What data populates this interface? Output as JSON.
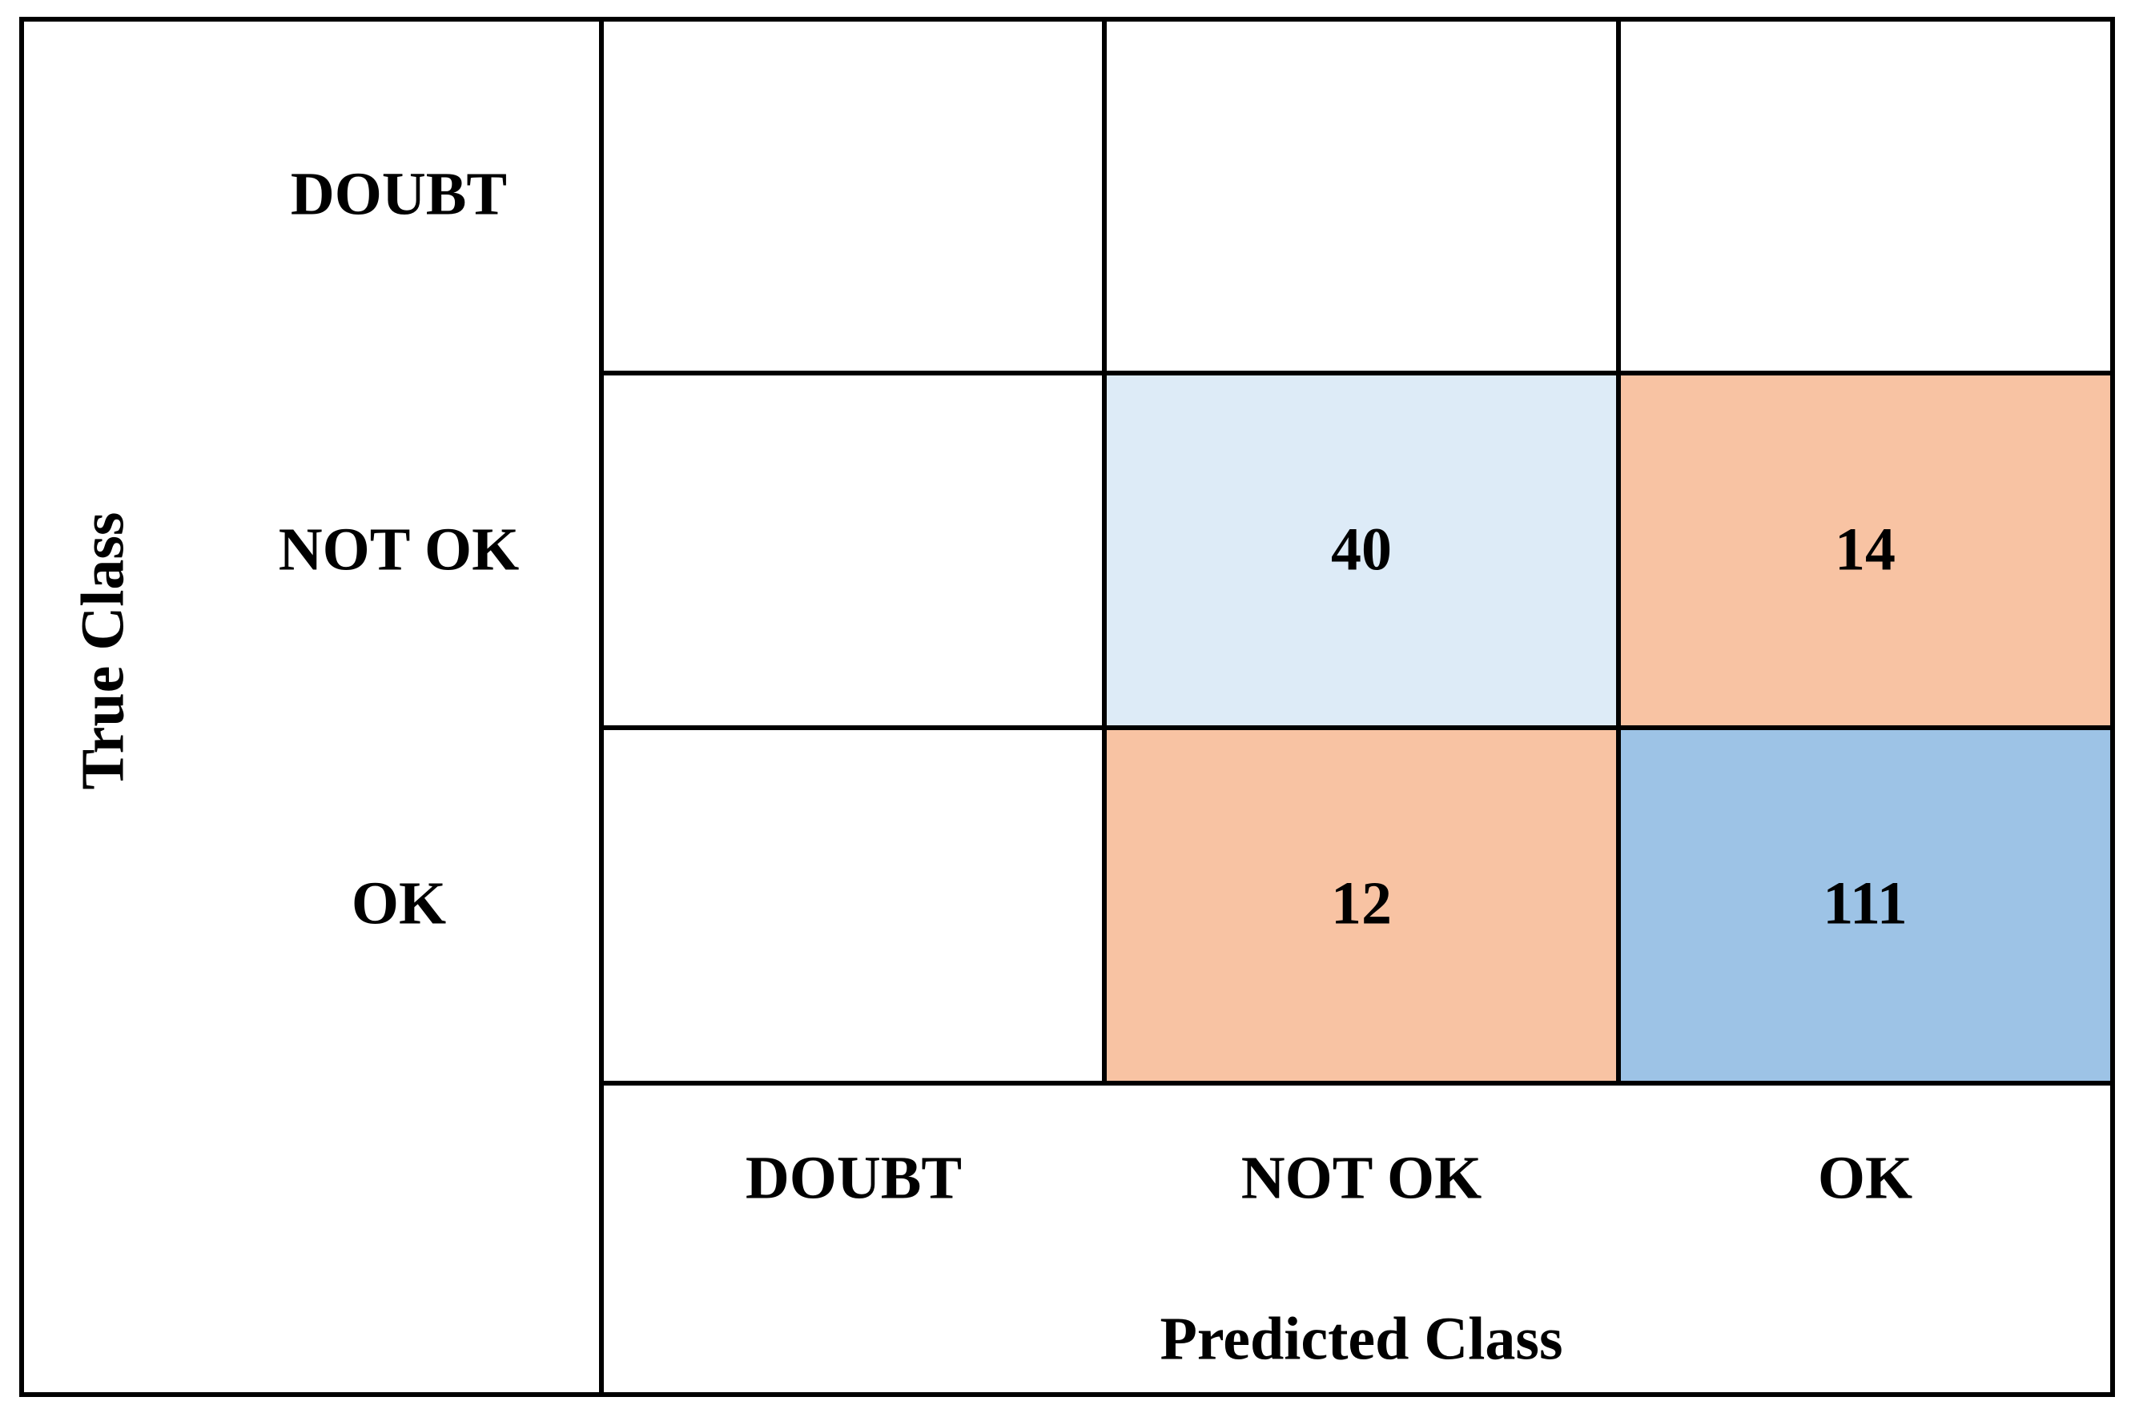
{
  "table": {
    "y_label": "True Class",
    "x_label": "Predicted Class",
    "row_labels": [
      "DOUBT",
      "NOT OK",
      "OK"
    ],
    "column_labels": [
      "DOUBT",
      "NOT OK",
      "OK"
    ],
    "rows": [
      [
        null,
        null,
        null
      ],
      [
        null,
        40,
        14
      ],
      [
        null,
        12,
        111
      ]
    ]
  }
}
